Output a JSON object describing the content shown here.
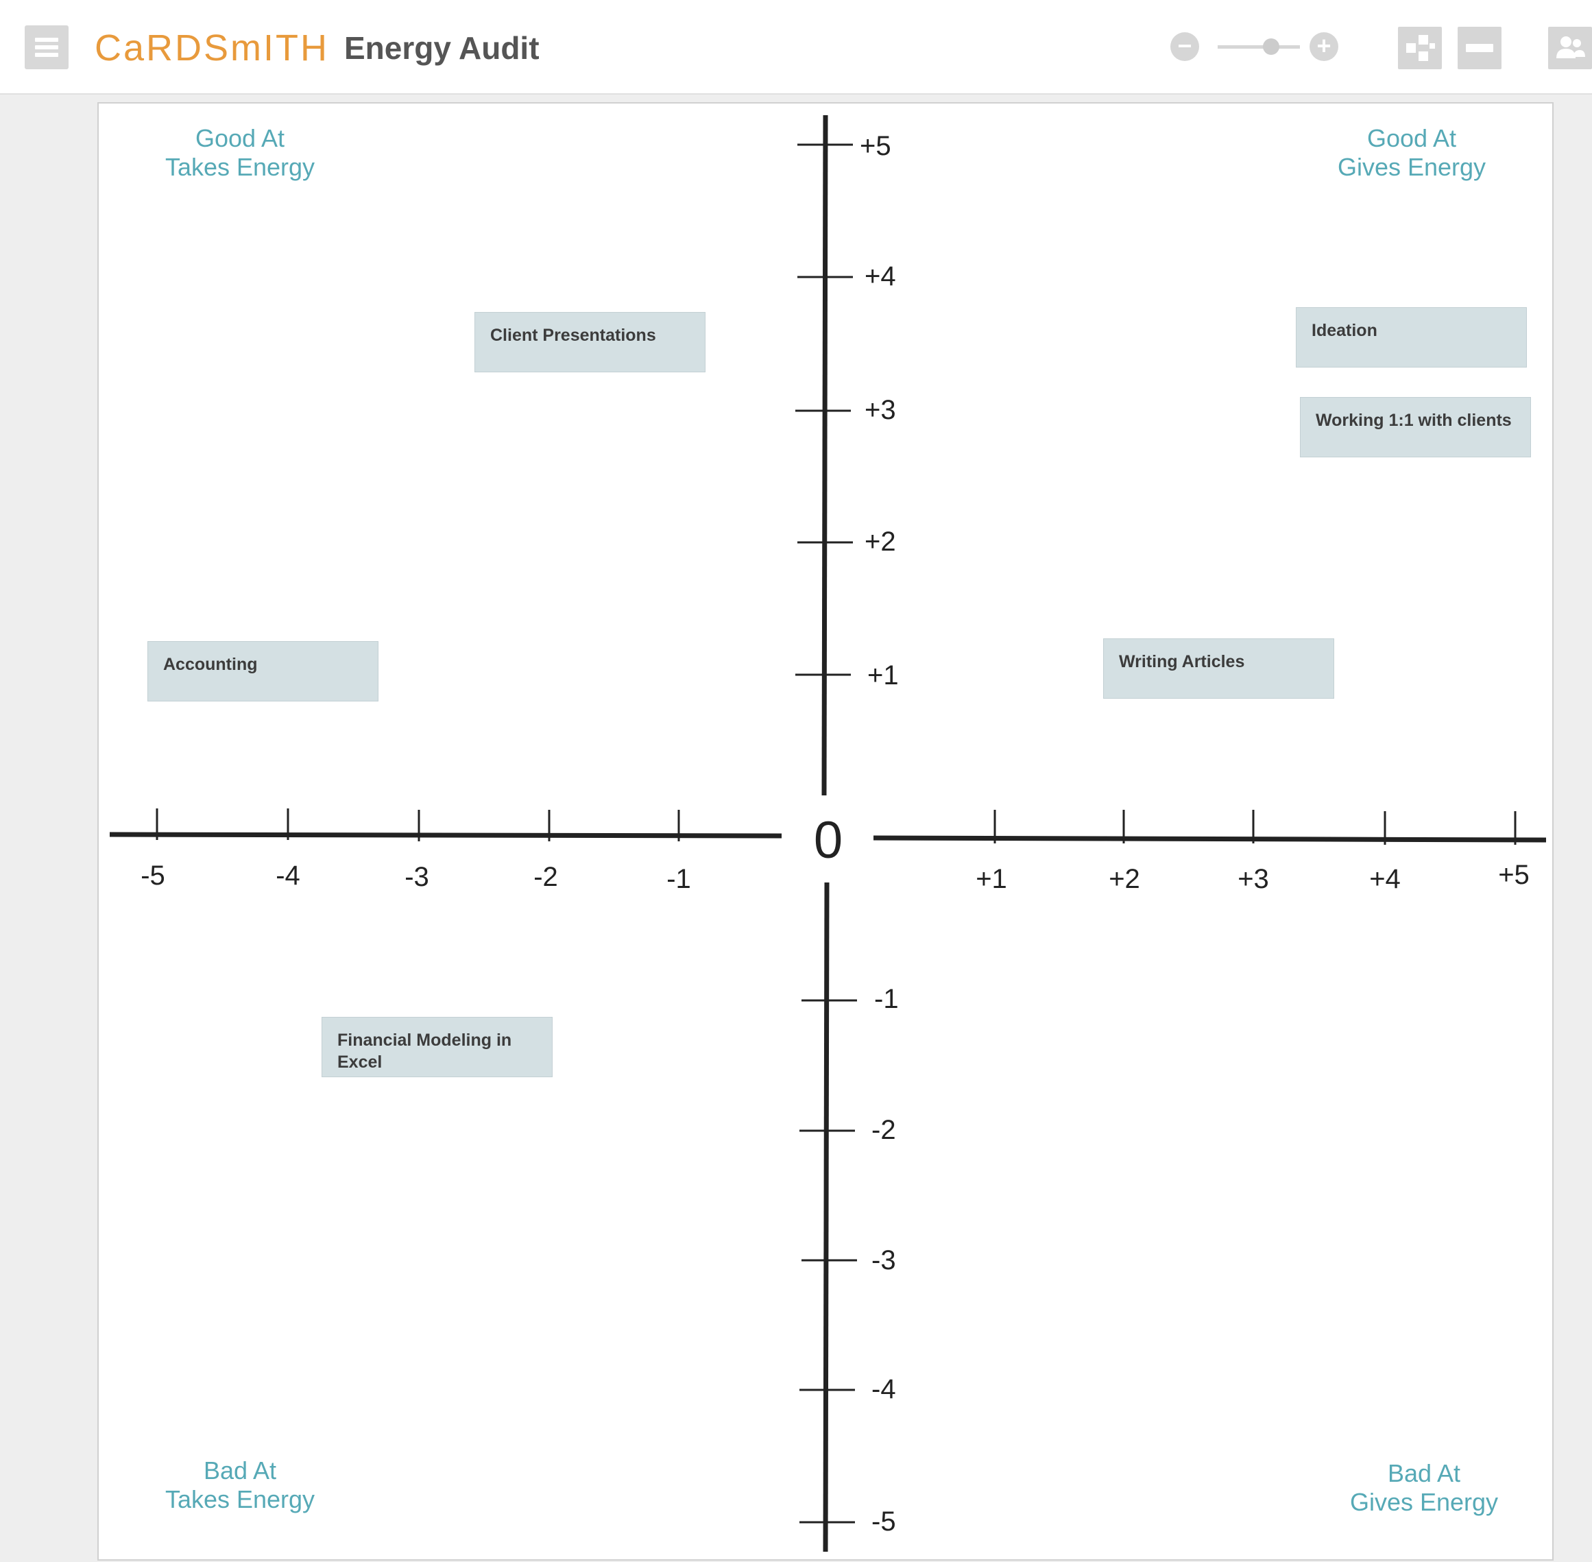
{
  "header": {
    "logo": "CaRDSmITH",
    "title": "Energy Audit",
    "zoom_out_label": "−",
    "zoom_in_label": "+",
    "zoom_level": 0.65
  },
  "quadrants": {
    "top_left": "Good At\nTakes Energy",
    "top_right": "Good At\nGives Energy",
    "bottom_left": "Bad At\nTakes Energy",
    "bottom_right": "Bad At\nGives Energy"
  },
  "axes": {
    "origin_label": "0",
    "x_ticks": [
      "-5",
      "-4",
      "-3",
      "-2",
      "-1",
      "+1",
      "+2",
      "+3",
      "+4",
      "+5"
    ],
    "y_ticks": [
      "+5",
      "+4",
      "+3",
      "+2",
      "+1",
      "-1",
      "-2",
      "-3",
      "-4",
      "-5"
    ]
  },
  "cards": [
    {
      "text": "Client Presentations"
    },
    {
      "text": "Ideation"
    },
    {
      "text": "Working 1:1 with clients"
    },
    {
      "text": "Accounting"
    },
    {
      "text": "Writing Articles"
    },
    {
      "text": "Financial Modeling in Excel"
    }
  ],
  "colors": {
    "logo": "#e89a3c",
    "quadrant_label": "#56a9b6",
    "card_bg": "#d4e0e3",
    "axis": "#222222"
  }
}
